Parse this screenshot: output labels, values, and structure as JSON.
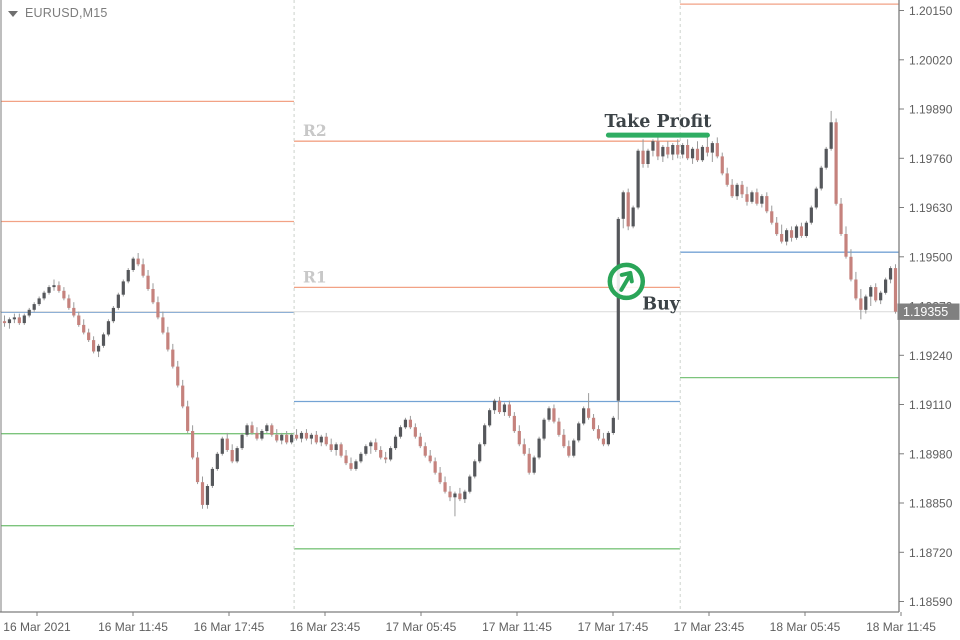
{
  "window": {
    "symbol_label": "EURUSD,M15",
    "dropdown_icon": "triangle-down"
  },
  "colors": {
    "background": "#ffffff",
    "up_body": "#55575b",
    "down_body": "#c5827d",
    "wick": "#9b9b9b",
    "pivot_orange": "#f2a285",
    "pivot_blue": "#74a3d4",
    "pivot_green": "#7cc47c",
    "tp_green": "#2fad63",
    "buy_green": "#2aa558",
    "pivot_label_gray": "#c8c8c8",
    "annotation_text": "#3c4347",
    "axis_text": "#5f5f5f",
    "border": "#7d7d7d",
    "separator": "#ccd2cc",
    "price_line": "#d9d9d9",
    "price_box_bg": "#808080",
    "price_box_text": "#ffffff"
  },
  "chart_data": {
    "type": "candlestick",
    "symbol": "EURUSD",
    "timeframe": "M15",
    "price_axis": {
      "ticks": [
        "1.20150",
        "1.20020",
        "1.19890",
        "1.19760",
        "1.19630",
        "1.19500",
        "1.19370",
        "1.19240",
        "1.19110",
        "1.18980",
        "1.18850",
        "1.18720",
        "1.18590"
      ],
      "range_top": 1.2015,
      "range_bottom": 1.1859,
      "current_price": "1.19355"
    },
    "time_axis": {
      "labels": [
        "16 Mar 2021",
        "16 Mar 11:45",
        "16 Mar 17:45",
        "16 Mar 23:45",
        "17 Mar 05:45",
        "17 Mar 11:45",
        "17 Mar 17:45",
        "17 Mar 23:45",
        "18 Mar 05:45",
        "18 Mar 11:45"
      ]
    },
    "day_separator_bars": [
      58.5,
      136.5
    ],
    "levels": {
      "left": [
        {
          "price": 1.1991,
          "color": "orange"
        },
        {
          "price": 1.19593,
          "color": "orange"
        },
        {
          "price": 1.19353,
          "color": "blue"
        },
        {
          "price": 1.19033,
          "color": "green"
        },
        {
          "price": 1.1879,
          "color": "green"
        }
      ],
      "middle": [
        {
          "price": 1.19805,
          "color": "orange",
          "label": "R2"
        },
        {
          "price": 1.19419,
          "color": "orange",
          "label": "R1"
        },
        {
          "price": 1.19118,
          "color": "blue"
        },
        {
          "price": 1.18729,
          "color": "green"
        }
      ],
      "right": [
        {
          "price": 1.20167,
          "color": "orange"
        },
        {
          "price": 1.19512,
          "color": "blue"
        },
        {
          "price": 1.19181,
          "color": "green"
        }
      ]
    },
    "annotations": {
      "take_profit": {
        "label": "Take Profit",
        "price": 1.19821,
        "from_bar": 122,
        "to_bar": 142
      },
      "buy": {
        "label": "Buy",
        "price": 1.19435,
        "bar": 125
      }
    },
    "pip_base": 1.18,
    "pip_value": 0.0001,
    "ohlc_pips": [
      [
        133,
        134.5,
        131.5,
        132.5
      ],
      [
        132.5,
        134,
        131,
        133.5
      ],
      [
        133.5,
        135,
        132.5,
        134
      ],
      [
        134,
        135,
        132,
        132.5
      ],
      [
        132.5,
        135,
        132,
        134.5
      ],
      [
        134.5,
        136.5,
        134,
        136
      ],
      [
        136,
        138,
        135.5,
        137.5
      ],
      [
        137.5,
        139.5,
        137,
        139
      ],
      [
        139,
        141,
        138.5,
        140.5
      ],
      [
        140.5,
        142.5,
        140,
        142
      ],
      [
        142,
        144,
        141,
        142.5
      ],
      [
        142.5,
        143.5,
        140.5,
        141
      ],
      [
        141,
        142,
        138.5,
        139
      ],
      [
        139,
        140,
        136,
        136.5
      ],
      [
        136.5,
        138,
        134,
        134.5
      ],
      [
        134.5,
        135.5,
        131.5,
        132
      ],
      [
        132,
        133.5,
        129.5,
        130
      ],
      [
        130,
        131,
        127.5,
        128
      ],
      [
        128,
        129,
        124.5,
        125
      ],
      [
        125,
        127,
        123.5,
        126.5
      ],
      [
        126.5,
        130,
        126,
        129.5
      ],
      [
        129.5,
        133.5,
        129,
        133
      ],
      [
        133,
        137,
        132.5,
        136.5
      ],
      [
        136.5,
        140.5,
        136,
        140
      ],
      [
        140,
        144,
        139.5,
        143.5
      ],
      [
        143.5,
        147,
        143,
        146.5
      ],
      [
        146.5,
        150,
        146,
        149.5
      ],
      [
        149.5,
        151,
        147.5,
        148
      ],
      [
        148,
        149.5,
        144.5,
        145
      ],
      [
        145,
        146.5,
        141,
        141.5
      ],
      [
        141.5,
        143,
        137.5,
        138
      ],
      [
        138,
        139.5,
        133.5,
        134
      ],
      [
        134,
        135.5,
        129.5,
        130
      ],
      [
        130,
        131.5,
        125,
        125.5
      ],
      [
        125.5,
        127,
        120.5,
        121
      ],
      [
        121,
        122.5,
        115.5,
        116
      ],
      [
        116,
        117.5,
        110,
        110.5
      ],
      [
        110.5,
        112,
        103.5,
        104
      ],
      [
        104,
        105.5,
        96.5,
        97
      ],
      [
        97,
        98.5,
        90,
        90.5
      ],
      [
        90.5,
        92,
        83.5,
        84.5
      ],
      [
        84.5,
        90,
        83.5,
        89.5
      ],
      [
        89.5,
        94.5,
        89,
        94
      ],
      [
        94,
        98.5,
        93.5,
        98
      ],
      [
        98,
        102.5,
        97.5,
        102
      ],
      [
        102,
        103.5,
        98.5,
        99
      ],
      [
        99,
        100.5,
        95.5,
        96
      ],
      [
        96,
        100,
        95.5,
        99.5
      ],
      [
        99.5,
        103.5,
        99,
        103
      ],
      [
        103,
        106,
        102.5,
        105.5
      ],
      [
        105.5,
        106.5,
        103,
        103.5
      ],
      [
        103.5,
        105,
        101.5,
        102
      ],
      [
        102,
        104.5,
        101.5,
        104
      ],
      [
        104,
        106,
        103.5,
        105.5
      ],
      [
        105.5,
        106,
        102.5,
        103
      ],
      [
        103,
        104.5,
        101,
        101.5
      ],
      [
        101.5,
        103.5,
        100.5,
        103
      ],
      [
        103,
        104,
        100.5,
        101
      ],
      [
        101,
        103.5,
        100.5,
        103
      ],
      [
        103,
        104.5,
        101.5,
        102
      ],
      [
        102,
        104,
        101,
        103.5
      ],
      [
        103.5,
        104.5,
        101.5,
        102
      ],
      [
        102,
        103.5,
        100.5,
        103
      ],
      [
        103,
        104,
        100.5,
        101
      ],
      [
        101,
        103,
        100,
        102.5
      ],
      [
        102.5,
        103.5,
        100,
        100.5
      ],
      [
        100.5,
        102,
        98.5,
        99
      ],
      [
        99,
        101,
        97.5,
        100.5
      ],
      [
        100.5,
        101,
        97,
        97.5
      ],
      [
        97.5,
        99,
        95,
        95.5
      ],
      [
        95.5,
        97,
        93.5,
        94
      ],
      [
        94,
        96.5,
        93.5,
        96
      ],
      [
        96,
        98.5,
        95.5,
        98
      ],
      [
        98,
        100.5,
        97.5,
        100
      ],
      [
        100,
        101.5,
        98,
        101
      ],
      [
        101,
        102,
        98.5,
        99
      ],
      [
        99,
        100,
        96.5,
        97
      ],
      [
        97,
        98.5,
        95.5,
        96.5
      ],
      [
        96.5,
        100,
        96,
        99.5
      ],
      [
        99.5,
        103,
        99,
        102.5
      ],
      [
        102.5,
        105.5,
        102,
        105
      ],
      [
        105,
        107.5,
        104.5,
        107
      ],
      [
        107,
        108,
        104.5,
        105
      ],
      [
        105,
        106,
        102,
        102.5
      ],
      [
        102.5,
        103.5,
        99.5,
        100
      ],
      [
        100,
        101,
        97,
        97.5
      ],
      [
        97.5,
        99,
        95.5,
        96
      ],
      [
        96,
        97,
        92.5,
        93
      ],
      [
        93,
        94.5,
        90,
        90.5
      ],
      [
        90.5,
        92,
        87.5,
        88
      ],
      [
        88,
        89.5,
        85.5,
        86.5
      ],
      [
        86.5,
        88,
        81.5,
        87.5
      ],
      [
        87.5,
        89,
        85.5,
        86
      ],
      [
        86,
        88.5,
        85,
        88
      ],
      [
        88,
        92.5,
        87.5,
        92
      ],
      [
        92,
        96.5,
        91.5,
        96
      ],
      [
        96,
        101,
        95.5,
        100.5
      ],
      [
        100.5,
        106,
        100,
        105.5
      ],
      [
        105.5,
        110,
        105,
        109.5
      ],
      [
        109.5,
        112.5,
        108.5,
        112
      ],
      [
        112,
        113,
        108.5,
        109
      ],
      [
        109,
        111.5,
        108,
        111
      ],
      [
        111,
        112,
        107.5,
        108
      ],
      [
        108,
        109,
        103.5,
        104
      ],
      [
        104,
        105.5,
        100,
        100.5
      ],
      [
        100.5,
        102,
        97.5,
        98
      ],
      [
        98,
        99.5,
        92.5,
        93
      ],
      [
        93,
        97.5,
        92.5,
        97
      ],
      [
        97,
        102.5,
        96.5,
        102
      ],
      [
        102,
        107.5,
        101.5,
        107
      ],
      [
        107,
        110.5,
        106.5,
        110
      ],
      [
        110,
        111,
        106,
        106.5
      ],
      [
        106.5,
        107.5,
        102.5,
        103
      ],
      [
        103,
        104.5,
        99.5,
        100
      ],
      [
        100,
        101.5,
        97,
        97.5
      ],
      [
        97.5,
        102,
        97,
        101.5
      ],
      [
        101.5,
        106.5,
        101,
        106
      ],
      [
        106,
        110.5,
        105.5,
        110
      ],
      [
        110,
        114,
        107,
        107.5
      ],
      [
        107.5,
        108.5,
        104,
        104.5
      ],
      [
        104.5,
        105.5,
        101.5,
        102
      ],
      [
        102,
        103.5,
        100,
        100.5
      ],
      [
        100.5,
        104,
        100,
        103.5
      ],
      [
        103.5,
        108,
        103,
        107.5
      ],
      [
        112,
        160.5,
        107,
        160
      ],
      [
        160,
        167.5,
        157.5,
        167
      ],
      [
        167,
        168,
        157,
        158
      ],
      [
        158,
        163.5,
        157.5,
        163
      ],
      [
        163,
        178.5,
        162.5,
        178
      ],
      [
        178,
        181,
        173.5,
        174.5
      ],
      [
        174.5,
        178.5,
        173.5,
        178
      ],
      [
        178,
        181,
        176.5,
        180.5
      ],
      [
        180.5,
        181.5,
        175.5,
        176.5
      ],
      [
        176.5,
        179.5,
        175,
        179
      ],
      [
        179,
        180.5,
        176,
        177
      ],
      [
        177,
        180,
        175.5,
        179.5
      ],
      [
        179.5,
        181,
        176,
        177
      ],
      [
        177,
        180,
        176,
        179.5
      ],
      [
        179.5,
        181,
        175.5,
        176
      ],
      [
        176,
        179,
        174.5,
        178.5
      ],
      [
        178.5,
        180.5,
        175,
        175.5
      ],
      [
        175.5,
        179.5,
        175,
        179
      ],
      [
        179,
        182.5,
        176.5,
        177.5
      ],
      [
        177.5,
        180.5,
        175,
        180
      ],
      [
        180,
        181.5,
        176,
        176.5
      ],
      [
        176.5,
        177.5,
        171.5,
        172
      ],
      [
        172,
        173.5,
        168.5,
        169
      ],
      [
        169,
        170.5,
        165.5,
        166
      ],
      [
        166,
        169.5,
        165,
        169
      ],
      [
        169,
        170,
        165.5,
        166.5
      ],
      [
        166.5,
        168.5,
        163.5,
        164.5
      ],
      [
        164.5,
        167.5,
        164,
        167
      ],
      [
        167,
        168,
        163.5,
        164
      ],
      [
        164,
        166.5,
        163,
        166
      ],
      [
        166,
        167,
        161.5,
        162
      ],
      [
        162,
        163.5,
        158.5,
        159
      ],
      [
        159,
        160.5,
        155.5,
        156
      ],
      [
        156,
        158.5,
        153.5,
        154
      ],
      [
        154,
        157.5,
        153,
        157
      ],
      [
        157,
        158,
        154,
        155
      ],
      [
        155,
        158.5,
        154.5,
        158
      ],
      [
        158,
        159,
        155,
        155.5
      ],
      [
        155.5,
        159.5,
        155,
        159
      ],
      [
        159,
        163.5,
        158.5,
        163
      ],
      [
        163,
        168.5,
        162.5,
        168
      ],
      [
        168,
        174,
        167.5,
        173.5
      ],
      [
        173.5,
        179,
        173,
        178.5
      ],
      [
        178.5,
        188.5,
        178,
        185.5
      ],
      [
        185.5,
        186.5,
        163.5,
        164
      ],
      [
        164,
        165.5,
        155.5,
        156
      ],
      [
        156,
        158,
        149.5,
        150
      ],
      [
        150,
        152,
        143.5,
        144
      ],
      [
        144,
        146,
        138.5,
        139
      ],
      [
        139,
        141.5,
        133.5,
        136
      ],
      [
        136,
        140,
        135,
        139.5
      ],
      [
        139.5,
        142.5,
        137,
        142
      ],
      [
        142,
        143,
        138,
        138.5
      ],
      [
        138.5,
        141,
        137.5,
        140.5
      ],
      [
        140.5,
        144.5,
        140,
        144
      ],
      [
        144,
        147.5,
        143,
        147
      ],
      [
        147,
        148,
        135,
        135.5
      ]
    ]
  }
}
